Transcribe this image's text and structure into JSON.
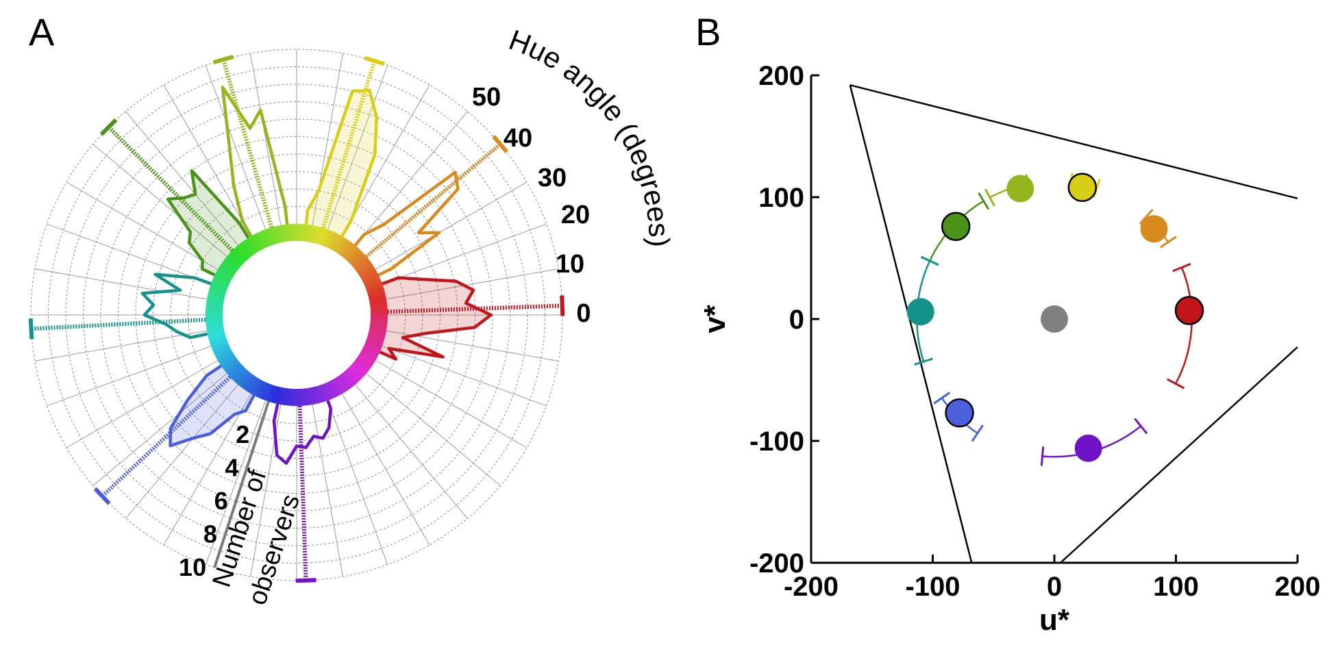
{
  "panels": {
    "a": {
      "letter": "A"
    },
    "b": {
      "letter": "B"
    }
  },
  "chart_data": [
    {
      "panel": "A",
      "type": "polar-histogram",
      "radial_axis_label": "Hue angle (degrees)",
      "radial_ticks": [
        0,
        10,
        20,
        30,
        40,
        50
      ],
      "count_axis_label_line1": "Number of",
      "count_axis_label_line2": "observers",
      "count_ticks": [
        2,
        4,
        6,
        8,
        10
      ],
      "count_max": 10,
      "angular_step_deg": 10,
      "grid": true,
      "series": [
        {
          "color": "#c0161b",
          "fill": true,
          "samples": [
            [
              -24,
              1
            ],
            [
              -20,
              0.4
            ],
            [
              -16,
              3.5
            ],
            [
              -12,
              1
            ],
            [
              -8,
              2.3
            ],
            [
              -4,
              5
            ],
            [
              0,
              5.9
            ],
            [
              4,
              4.5
            ],
            [
              8,
              5
            ],
            [
              12,
              4.1
            ],
            [
              16,
              2.2
            ],
            [
              20,
              1
            ]
          ],
          "mean_angle": 2,
          "mean_count": 10,
          "sd_deg": 3
        },
        {
          "color": "#d98a1d",
          "fill": false,
          "samples": [
            [
              26,
              0.8
            ],
            [
              30,
              4.2
            ],
            [
              34,
              3.2
            ],
            [
              38,
              6.5
            ],
            [
              42,
              7
            ],
            [
              46,
              2
            ],
            [
              50,
              0.8
            ]
          ],
          "mean_angle": 40,
          "mean_count": 10,
          "sd_deg": 3
        },
        {
          "color": "#d8cf14",
          "fill": true,
          "samples": [
            [
              60,
              1
            ],
            [
              64,
              5
            ],
            [
              68,
              7
            ],
            [
              72,
              8.3
            ],
            [
              76,
              8
            ],
            [
              80,
              2
            ],
            [
              84,
              0.8
            ]
          ],
          "mean_angle": 73,
          "mean_count": 10,
          "sd_deg": 3
        },
        {
          "color": "#95b51c",
          "fill": false,
          "samples": [
            [
              96,
              1
            ],
            [
              100,
              6.7
            ],
            [
              104,
              5.8
            ],
            [
              108,
              8.5
            ],
            [
              112,
              5
            ],
            [
              116,
              3
            ],
            [
              120,
              1
            ]
          ],
          "mean_angle": 106,
          "mean_count": 10,
          "sd_deg": 3
        },
        {
          "color": "#4a9219",
          "fill": true,
          "samples": [
            [
              122,
              1
            ],
            [
              126,
              5
            ],
            [
              130,
              3.8
            ],
            [
              134,
              4.1
            ],
            [
              138,
              4.7
            ],
            [
              142,
              2.5
            ],
            [
              146,
              2.2
            ],
            [
              150,
              1
            ],
            [
              154,
              0.8
            ]
          ],
          "mean_angle": 135,
          "mean_count": 10,
          "sd_deg": 3
        },
        {
          "color": "#13938a",
          "fill": false,
          "samples": [
            [
              160,
              1
            ],
            [
              164,
              3.2
            ],
            [
              168,
              1.6
            ],
            [
              172,
              3.7
            ],
            [
              176,
              3
            ],
            [
              180,
              3.5
            ],
            [
              184,
              2.3
            ],
            [
              188,
              1.7
            ],
            [
              192,
              1
            ]
          ],
          "mean_angle": 183,
          "mean_count": 10,
          "sd_deg": 3
        },
        {
          "color": "#4b5fdc",
          "fill": true,
          "samples": [
            [
              214,
              1
            ],
            [
              218,
              2.7
            ],
            [
              222,
              4.5
            ],
            [
              226,
              5.2
            ],
            [
              230,
              4
            ],
            [
              234,
              3.2
            ],
            [
              238,
              1.5
            ],
            [
              242,
              1
            ]
          ],
          "mean_angle": 223,
          "mean_count": 10,
          "sd_deg": 3
        },
        {
          "color": "#7013c4",
          "fill": false,
          "samples": [
            [
              258,
              1
            ],
            [
              262,
              2.9
            ],
            [
              266,
              3.3
            ],
            [
              270,
              2.3
            ],
            [
              274,
              2.4
            ],
            [
              278,
              1.8
            ],
            [
              282,
              2
            ],
            [
              286,
              1.5
            ],
            [
              290,
              0.5
            ]
          ],
          "mean_angle": 272,
          "mean_count": 10,
          "sd_deg": 3
        }
      ],
      "hue_ring": true
    },
    {
      "panel": "B",
      "type": "scatter",
      "xlabel": "u*",
      "ylabel": "v*",
      "xlim": [
        -200,
        200
      ],
      "ylim": [
        -200,
        200
      ],
      "xticks": [
        -200,
        -100,
        0,
        100,
        200
      ],
      "yticks": [
        -200,
        -100,
        0,
        100,
        200
      ],
      "gamut_lines": [
        [
          [
            -168,
            192
          ],
          [
            -68,
            -200
          ]
        ],
        [
          [
            -168,
            192
          ],
          [
            200,
            99
          ]
        ],
        [
          [
            5,
            -200
          ],
          [
            200,
            -23
          ]
        ]
      ],
      "neutral_point": {
        "u": 0,
        "v": 0,
        "color": "#808080"
      },
      "points": [
        {
          "u": 111,
          "v": 7,
          "color": "#c0161b",
          "outline": true,
          "hue_deg": 3.6,
          "ci_from_deg": -28,
          "ci_to_deg": 22
        },
        {
          "u": 82,
          "v": 74,
          "color": "#d98a1d",
          "outline": false,
          "hue_deg": 42,
          "ci_from_deg": 34,
          "ci_to_deg": 48
        },
        {
          "u": 23,
          "v": 108,
          "color": "#d8cf14",
          "outline": true,
          "hue_deg": 78,
          "ci_from_deg": 72,
          "ci_to_deg": 83
        },
        {
          "u": -28,
          "v": 107,
          "color": "#95b51c",
          "outline": false,
          "hue_deg": 105,
          "ci_from_deg": 101,
          "ci_to_deg": 118
        },
        {
          "u": -81,
          "v": 76,
          "color": "#4a9219",
          "outline": true,
          "hue_deg": 137,
          "ci_from_deg": 121,
          "ci_to_deg": 155
        },
        {
          "u": -110,
          "v": 6,
          "color": "#13938a",
          "outline": false,
          "hue_deg": 177,
          "ci_from_deg": 155,
          "ci_to_deg": 198
        },
        {
          "u": -78,
          "v": -77,
          "color": "#4b5fdc",
          "outline": true,
          "hue_deg": 224,
          "ci_from_deg": 215,
          "ci_to_deg": 236
        },
        {
          "u": 28,
          "v": -106,
          "color": "#7013c4",
          "outline": false,
          "hue_deg": 285,
          "ci_from_deg": 265,
          "ci_to_deg": 309
        }
      ],
      "grid": false
    }
  ]
}
